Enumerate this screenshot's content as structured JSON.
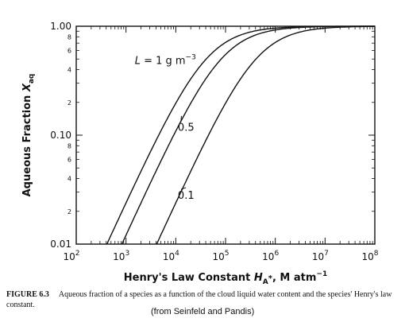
{
  "chart_data": {
    "type": "line",
    "xscale": "log",
    "yscale": "log",
    "xlim": [
      100,
      100000000
    ],
    "ylim": [
      0.01,
      1.0
    ],
    "xlabel_parts": [
      "Henry's Law Constant ",
      "H",
      "A",
      "*",
      ", M atm",
      "−1"
    ],
    "ylabel_parts": [
      "Aqueous Fraction ",
      "X",
      "aq"
    ],
    "x_ticks": [
      100,
      1000,
      10000,
      100000,
      1000000,
      10000000,
      100000000
    ],
    "x_tick_labels": [
      {
        "base": "10",
        "exp": "2"
      },
      {
        "base": "10",
        "exp": "3"
      },
      {
        "base": "10",
        "exp": "4"
      },
      {
        "base": "10",
        "exp": "5"
      },
      {
        "base": "10",
        "exp": "6"
      },
      {
        "base": "10",
        "exp": "7"
      },
      {
        "base": "10",
        "exp": "8"
      }
    ],
    "y_ticks": [
      0.01,
      0.1,
      1.0
    ],
    "y_tick_labels": [
      "0.01",
      "0.10",
      "1.00"
    ],
    "y_minor_labels": [
      {
        "value": 0.02,
        "label": "2"
      },
      {
        "value": 0.04,
        "label": "4"
      },
      {
        "value": 0.06,
        "label": "6"
      },
      {
        "value": 0.08,
        "label": "8"
      },
      {
        "value": 0.2,
        "label": "2"
      },
      {
        "value": 0.4,
        "label": "4"
      },
      {
        "value": 0.6,
        "label": "6"
      },
      {
        "value": 0.8,
        "label": "8"
      }
    ],
    "grid": false,
    "series": [
      {
        "name": "L = 1 g m−3",
        "label_main": "L = 1 g m",
        "label_sup": "−3",
        "L": 1.0
      },
      {
        "name": "0.5",
        "label_main": "0.5",
        "label_sup": "",
        "L": 0.5
      },
      {
        "name": "0.1",
        "label_main": "0.1",
        "label_sup": "",
        "L": 0.1
      }
    ]
  },
  "caption": {
    "figure_number": "FIGURE 6.3",
    "text": "Aqueous fraction of a species as a function of the cloud liquid water content and the species' Henry's law constant.",
    "source": "(from Seinfeld and Pandis)"
  }
}
